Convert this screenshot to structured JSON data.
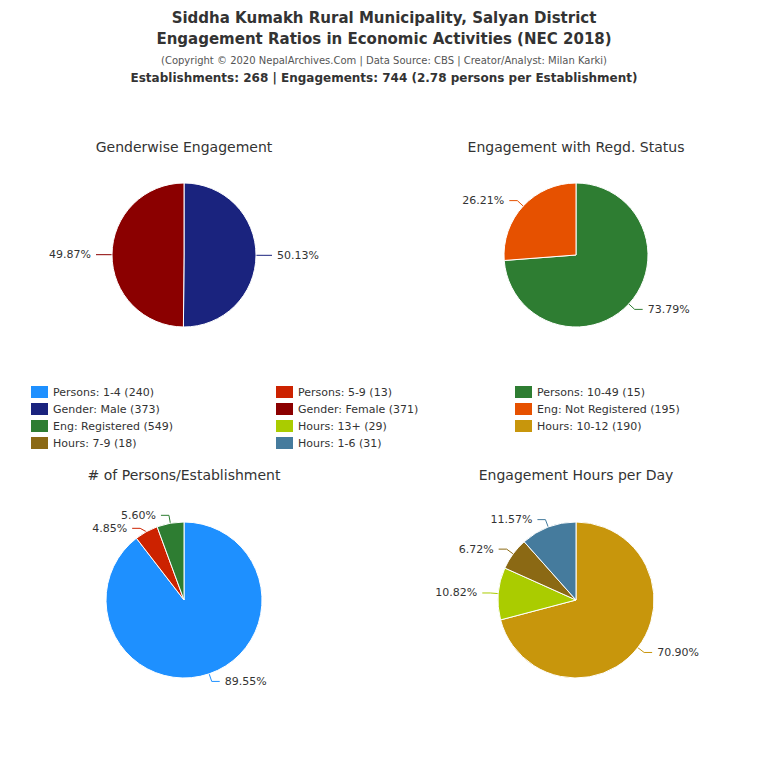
{
  "title": [
    "Siddha Kumakh Rural Municipality, Salyan District",
    "Engagement Ratios in Economic Activities (NEC 2018)"
  ],
  "subtitle": "(Copyright © 2020 NepalArchives.Com | Data Source: CBS | Creator/Analyst: Milan Karki)",
  "annotations": [
    "Establishments: 268 | Engagements: 744 (2.78 persons per Establishment)"
  ],
  "legend_entries": [
    {
      "name": "Persons: 1-4 (240)",
      "color": "#1e90ff"
    },
    {
      "name": "Persons: 5-9 (13)",
      "color": "#cc2200"
    },
    {
      "name": "Persons: 10-49 (15)",
      "color": "#2e7d32"
    },
    {
      "name": "Gender: Male (373)",
      "color": "#1a237e"
    },
    {
      "name": "Gender: Female (371)",
      "color": "#8b0000"
    },
    {
      "name": "Eng: Not Registered (195)",
      "color": "#e65100"
    },
    {
      "name": "Eng: Registered (549)",
      "color": "#2e7d32"
    },
    {
      "name": "Hours: 13+ (29)",
      "color": "#aacc00"
    },
    {
      "name": "Hours: 10-12 (190)",
      "color": "#c8960c"
    },
    {
      "name": "Hours: 7-9 (18)",
      "color": "#8B6914"
    },
    {
      "name": "Hours: 1-6 (31)",
      "color": "#457b9d"
    }
  ],
  "chart_data": [
    {
      "type": "pie",
      "title": "Genderwise Engagement",
      "values": [
        50.13,
        49.87
      ],
      "value_labels": [
        "50.13%",
        "49.87%"
      ],
      "colors": [
        "#1a237e",
        "#8b0000"
      ],
      "data_labels": true
    },
    {
      "type": "pie",
      "title": "Engagement with Regd. Status",
      "values": [
        73.79,
        26.21
      ],
      "value_labels": [
        "73.79%",
        "26.21%"
      ],
      "colors": [
        "#2e7d32",
        "#e65100"
      ],
      "data_labels": true
    },
    {
      "type": "pie",
      "title": "# of Persons/Establishment",
      "values": [
        89.55,
        4.85,
        5.6
      ],
      "value_labels": [
        "89.55%",
        "4.85%",
        "5.60%"
      ],
      "colors": [
        "#1e90ff",
        "#cc2200",
        "#2e7d32"
      ],
      "data_labels": true
    },
    {
      "type": "pie",
      "title": "Engagement Hours per Day",
      "values": [
        70.9,
        10.82,
        6.72,
        11.57
      ],
      "value_labels": [
        "70.90%",
        "10.82%",
        "6.72%",
        "11.57%"
      ],
      "colors": [
        "#c8960c",
        "#aacc00",
        "#8B6914",
        "#457b9d"
      ],
      "data_labels": true
    }
  ]
}
